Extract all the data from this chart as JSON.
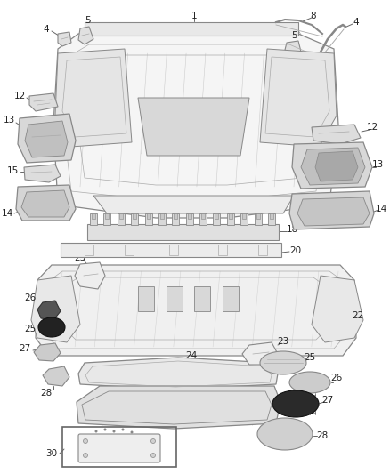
{
  "bg_color": "#ffffff",
  "line_color": "#555555",
  "text_color": "#222222",
  "figsize": [
    4.38,
    5.33
  ],
  "dpi": 100
}
